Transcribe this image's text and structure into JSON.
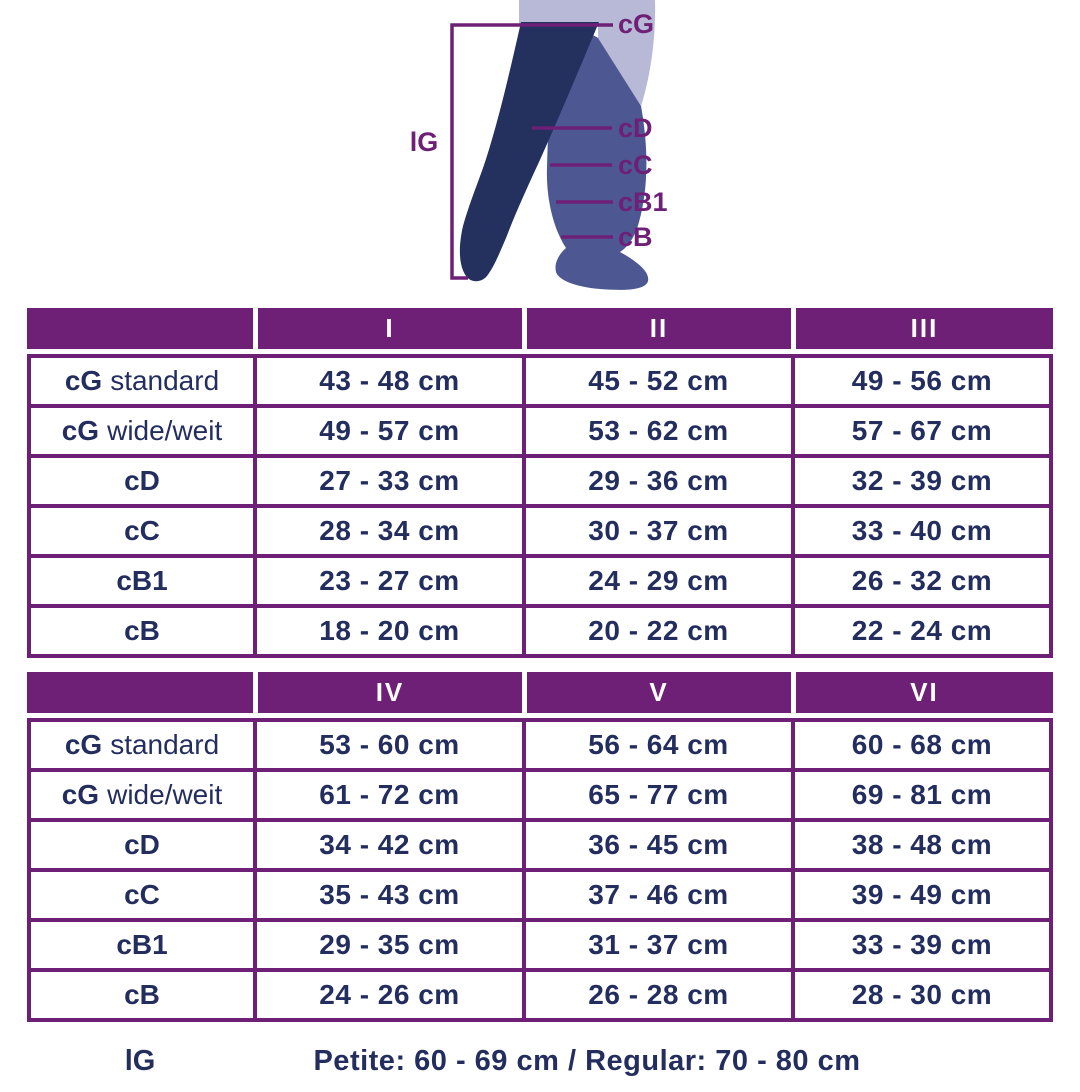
{
  "colors": {
    "purple": "#6e2077",
    "navy": "#232e5f",
    "leg_front": "#24315f",
    "leg_back": "#4d5892",
    "skin": "#b7b9d6",
    "white": "#ffffff"
  },
  "diagram": {
    "length_label": "lG",
    "markers": {
      "cg": "cG",
      "cd": "cD",
      "cc": "cC",
      "cb1": "cB1",
      "cb": "cB"
    }
  },
  "chart_data": [
    {
      "type": "table",
      "title": "Sizes I - III circumference ranges",
      "columns": [
        "I",
        "II",
        "III"
      ],
      "rows": [
        {
          "label_bold": "cG",
          "label_rest": "standard",
          "values": [
            "43 - 48 cm",
            "45 - 52 cm",
            "49 - 56 cm"
          ]
        },
        {
          "label_bold": "cG",
          "label_rest": "wide/weit",
          "values": [
            "49 - 57 cm",
            "53 - 62 cm",
            "57 - 67 cm"
          ]
        },
        {
          "label_bold": "cD",
          "label_rest": "",
          "values": [
            "27 - 33 cm",
            "29 - 36 cm",
            "32 - 39 cm"
          ]
        },
        {
          "label_bold": "cC",
          "label_rest": "",
          "values": [
            "28 - 34 cm",
            "30 - 37 cm",
            "33 - 40 cm"
          ]
        },
        {
          "label_bold": "cB1",
          "label_rest": "",
          "values": [
            "23 - 27 cm",
            "24 - 29 cm",
            "26 - 32 cm"
          ]
        },
        {
          "label_bold": "cB",
          "label_rest": "",
          "values": [
            "18 - 20 cm",
            "20 - 22 cm",
            "22 - 24 cm"
          ]
        }
      ]
    },
    {
      "type": "table",
      "title": "Sizes IV - VI circumference ranges",
      "columns": [
        "IV",
        "V",
        "VI"
      ],
      "rows": [
        {
          "label_bold": "cG",
          "label_rest": "standard",
          "values": [
            "53 - 60 cm",
            "56 - 64 cm",
            "60 - 68 cm"
          ]
        },
        {
          "label_bold": "cG",
          "label_rest": "wide/weit",
          "values": [
            "61 - 72 cm",
            "65 - 77 cm",
            "69 - 81 cm"
          ]
        },
        {
          "label_bold": "cD",
          "label_rest": "",
          "values": [
            "34 - 42 cm",
            "36 - 45 cm",
            "38 - 48 cm"
          ]
        },
        {
          "label_bold": "cC",
          "label_rest": "",
          "values": [
            "35 - 43 cm",
            "37 - 46 cm",
            "39 - 49 cm"
          ]
        },
        {
          "label_bold": "cB1",
          "label_rest": "",
          "values": [
            "29 - 35 cm",
            "31 - 37 cm",
            "33 - 39 cm"
          ]
        },
        {
          "label_bold": "cB",
          "label_rest": "",
          "values": [
            "24 - 26 cm",
            "26 - 28 cm",
            "28 - 30 cm"
          ]
        }
      ]
    }
  ],
  "footer": {
    "length_label": "lG",
    "text": "Petite: 60 - 69 cm / Regular: 70 - 80 cm"
  }
}
